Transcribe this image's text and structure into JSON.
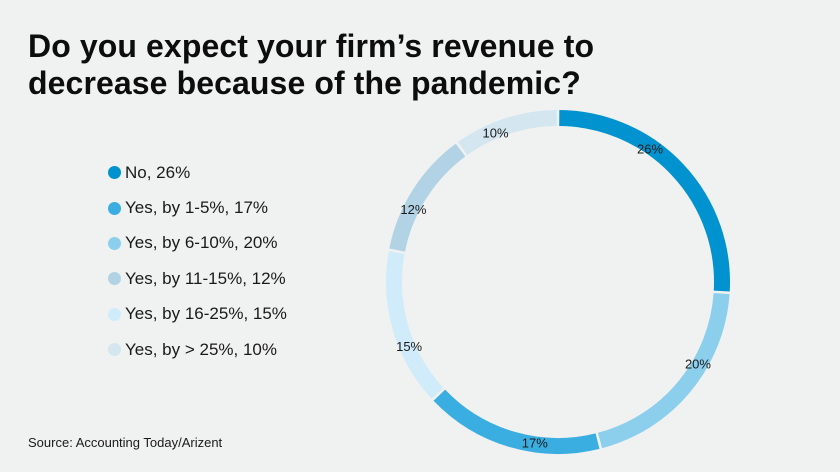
{
  "title": "Do you expect your firm’s revenue to decrease because of the pandemic?",
  "source": "Source: Accounting Today/Arizent",
  "legend": [
    {
      "label": "No, 26%",
      "color": "#0093d0"
    },
    {
      "label": "Yes, by 1-5%, 17%",
      "color": "#3aaee0"
    },
    {
      "label": "Yes, by 6-10%, 20%",
      "color": "#8ccfed"
    },
    {
      "label": "Yes, by 11-15%, 12%",
      "color": "#b1d3e5"
    },
    {
      "label": "Yes, by 16-25%, 15%",
      "color": "#d0ecfb"
    },
    {
      "label": "Yes, by > 25%, 10%",
      "color": "#d4e6ef"
    }
  ],
  "chart_data": {
    "type": "pie",
    "subtype": "donut",
    "title": "Do you expect your firm’s revenue to decrease because of the pandemic?",
    "categories": [
      "No",
      "Yes, by 1-5%",
      "Yes, by 6-10%",
      "Yes, by 11-15%",
      "Yes, by 16-25%",
      "Yes, by > 25%"
    ],
    "values": [
      26,
      17,
      20,
      12,
      15,
      10
    ],
    "unit": "%",
    "colors": [
      "#0093d0",
      "#3aaee0",
      "#8ccfed",
      "#b1d3e5",
      "#d0ecfb",
      "#d4e6ef"
    ],
    "draw_order_clockwise_from_top": [
      {
        "category": "No",
        "value": 26,
        "label": "26%",
        "color": "#0093d0"
      },
      {
        "category": "Yes, by 6-10%",
        "value": 20,
        "label": "20%",
        "color": "#8ccfed"
      },
      {
        "category": "Yes, by 1-5%",
        "value": 17,
        "label": "17%",
        "color": "#3aaee0"
      },
      {
        "category": "Yes, by 16-25%",
        "value": 15,
        "label": "15%",
        "color": "#d0ecfb"
      },
      {
        "category": "Yes, by 11-15%",
        "value": 12,
        "label": "12%",
        "color": "#b1d3e5"
      },
      {
        "category": "Yes, by > 25%",
        "value": 10,
        "label": "10%",
        "color": "#d4e6ef"
      }
    ],
    "legend_position": "left",
    "source": "Source: Accounting Today/Arizent"
  }
}
